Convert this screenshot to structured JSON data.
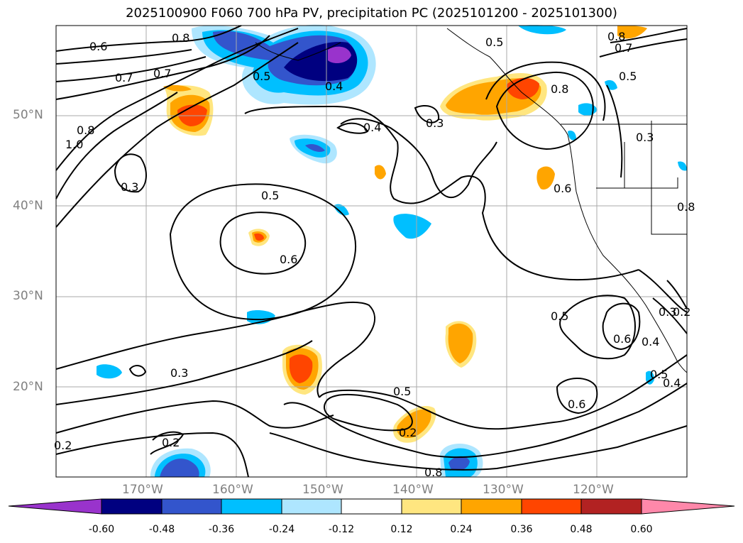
{
  "title": "2025100900 F060 700 hPa PV, precipitation PC (2025101200 - 2025101300)",
  "lat_labels": [
    "50°N",
    "40°N",
    "30°N",
    "20°N"
  ],
  "lon_labels": [
    "170°W",
    "160°W",
    "150°W",
    "140°W",
    "130°W",
    "120°W"
  ],
  "contour_labels": [
    "0.6",
    "0.8",
    "0.7",
    "0.7",
    "0.8",
    "1.0",
    "0.5",
    "0.4",
    "0.3",
    "0.4",
    "0.3",
    "0.5",
    "0.6",
    "0.3",
    "0.8",
    "0.7",
    "0.5",
    "0.8",
    "0.5",
    "0.3",
    "0.6",
    "0.5",
    "0.6",
    "0.4",
    "0.3",
    "0.2",
    "0.5",
    "0.4",
    "0.5",
    "0.6",
    "0.2",
    "0.2",
    "0.2",
    "0.8",
    "0.8"
  ],
  "colorbar": {
    "labels": [
      "-0.60",
      "-0.48",
      "-0.36",
      "-0.24",
      "-0.12",
      "0.12",
      "0.24",
      "0.36",
      "0.48",
      "0.60"
    ],
    "colors": [
      "#9933cc",
      "#000080",
      "#3355cc",
      "#00bfff",
      "#aee6ff",
      "#ffffff",
      "#ffe680",
      "#ffa500",
      "#ff4500",
      "#b22222",
      "#ff88aa"
    ]
  }
}
